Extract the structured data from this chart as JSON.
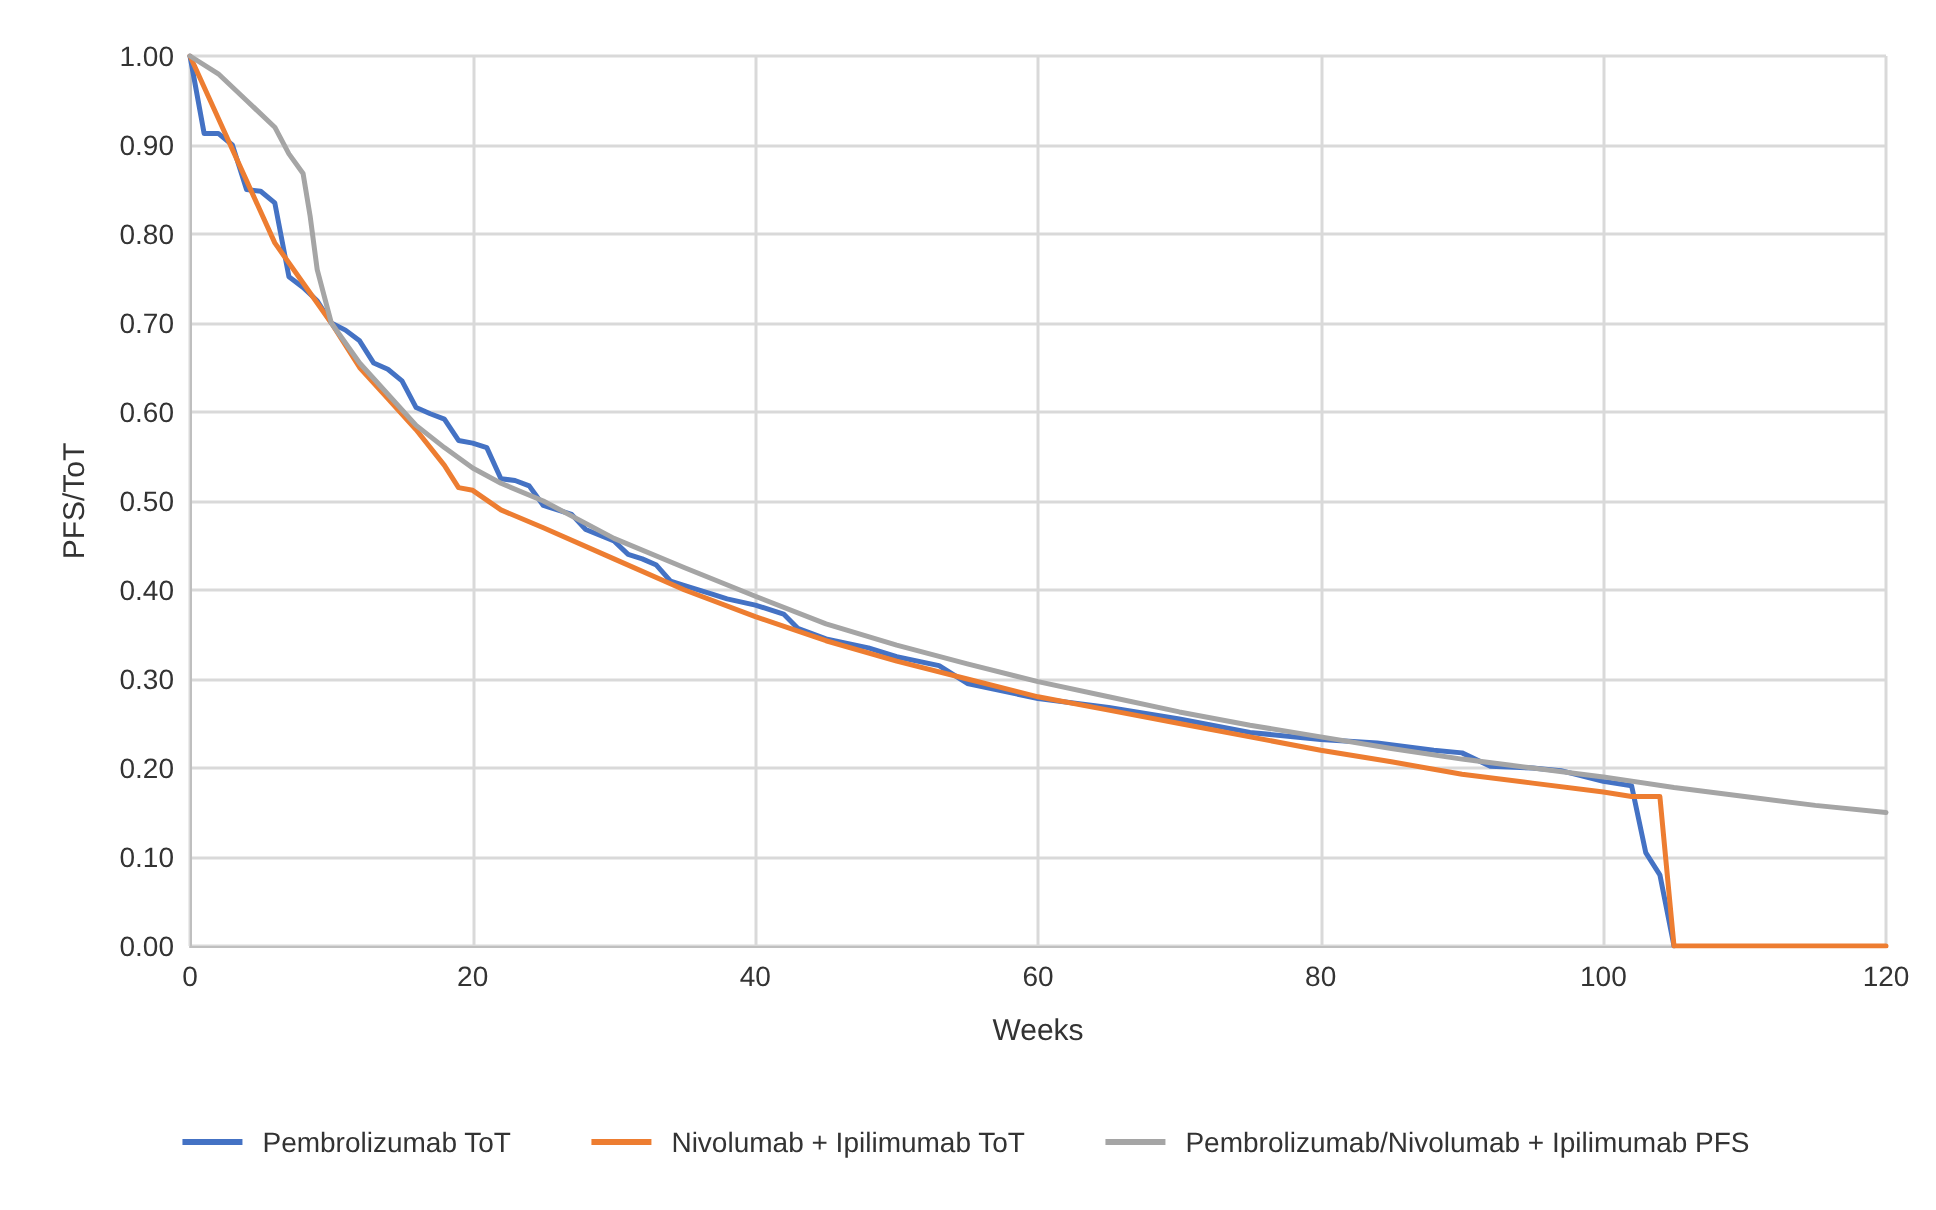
{
  "chart_data": {
    "type": "line",
    "xlabel": "Weeks",
    "ylabel": "PFS/ToT",
    "xlim": [
      0,
      120
    ],
    "xticks": [
      0,
      20,
      40,
      60,
      80,
      100,
      120
    ],
    "ylim": [
      0,
      1
    ],
    "yticks": [
      {
        "value": 0,
        "label": "0.00"
      },
      {
        "value": 0.1,
        "label": "0.10"
      },
      {
        "value": 0.2,
        "label": "0.20"
      },
      {
        "value": 0.3,
        "label": "0.30"
      },
      {
        "value": 0.4,
        "label": "0.40"
      },
      {
        "value": 0.5,
        "label": "0.50"
      },
      {
        "value": 0.6,
        "label": "0.60"
      },
      {
        "value": 0.7,
        "label": "0.70"
      },
      {
        "value": 0.8,
        "label": "0.80"
      },
      {
        "value": 0.9,
        "label": "0.90"
      },
      {
        "value": 1,
        "label": "1.00"
      }
    ],
    "grid": true,
    "legend": "bottom",
    "marker": "none",
    "line_style": "solid",
    "series": [
      {
        "name": "Pembrolizumab ToT",
        "color": "#4472c4",
        "x": [
          0,
          1,
          2,
          3,
          4,
          5,
          6,
          7,
          8,
          9,
          10,
          11,
          12,
          13,
          14,
          15,
          16,
          17,
          18,
          19,
          20,
          21,
          22,
          23,
          24,
          25,
          26,
          27,
          28,
          30,
          31,
          32,
          33,
          34,
          35,
          37,
          38,
          40,
          42,
          43,
          45,
          48,
          50,
          53,
          55,
          60,
          65,
          70,
          75,
          80,
          84,
          88,
          90,
          92,
          95,
          97,
          100,
          102,
          103,
          104,
          105
        ],
        "values": [
          1,
          0.913,
          0.913,
          0.9,
          0.85,
          0.848,
          0.835,
          0.752,
          0.74,
          0.725,
          0.7,
          0.692,
          0.68,
          0.655,
          0.648,
          0.635,
          0.605,
          0.598,
          0.592,
          0.568,
          0.565,
          0.56,
          0.525,
          0.523,
          0.517,
          0.495,
          0.49,
          0.485,
          0.468,
          0.455,
          0.44,
          0.435,
          0.428,
          0.41,
          0.405,
          0.395,
          0.39,
          0.383,
          0.373,
          0.357,
          0.345,
          0.335,
          0.325,
          0.315,
          0.295,
          0.278,
          0.268,
          0.255,
          0.24,
          0.232,
          0.228,
          0.22,
          0.217,
          0.202,
          0.2,
          0.197,
          0.185,
          0.18,
          0.105,
          0.08,
          0
        ]
      },
      {
        "name": "Nivolumab + Ipilimumab ToT",
        "color": "#ed7d31",
        "x": [
          0,
          2,
          4,
          6,
          8,
          10,
          12,
          14,
          16,
          18,
          19,
          20,
          22,
          25,
          30,
          35,
          40,
          45,
          50,
          55,
          60,
          65,
          70,
          75,
          80,
          85,
          90,
          95,
          100,
          102,
          104,
          105,
          120
        ],
        "values": [
          1,
          0.93,
          0.86,
          0.79,
          0.745,
          0.7,
          0.65,
          0.615,
          0.58,
          0.54,
          0.515,
          0.512,
          0.49,
          0.47,
          0.435,
          0.4,
          0.37,
          0.343,
          0.32,
          0.3,
          0.28,
          0.265,
          0.25,
          0.235,
          0.22,
          0.207,
          0.193,
          0.183,
          0.173,
          0.168,
          0.168,
          0,
          0
        ]
      },
      {
        "name": "Pembrolizumab/Nivolumab + Ipilimumab PFS",
        "color": "#a5a5a5",
        "x": [
          0,
          2,
          4,
          6,
          7,
          8,
          8.5,
          9,
          10,
          12,
          14,
          16,
          18,
          20,
          22,
          25,
          30,
          35,
          40,
          45,
          50,
          55,
          60,
          65,
          70,
          75,
          80,
          85,
          90,
          95,
          100,
          105,
          110,
          115,
          120
        ],
        "values": [
          1,
          0.98,
          0.95,
          0.92,
          0.89,
          0.868,
          0.82,
          0.76,
          0.7,
          0.655,
          0.62,
          0.585,
          0.56,
          0.537,
          0.52,
          0.5,
          0.458,
          0.425,
          0.393,
          0.362,
          0.338,
          0.317,
          0.297,
          0.28,
          0.263,
          0.248,
          0.235,
          0.222,
          0.21,
          0.2,
          0.19,
          0.178,
          0.168,
          0.158,
          0.15
        ]
      }
    ]
  }
}
